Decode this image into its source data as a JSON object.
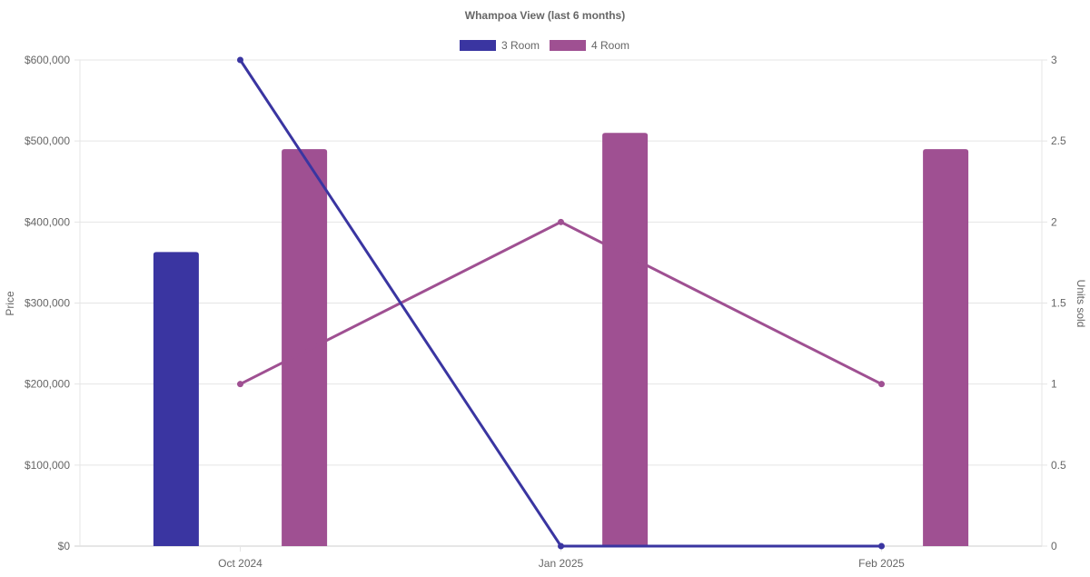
{
  "chart_data": {
    "type": "bar",
    "title": "Whampoa View (last 6 months)",
    "categories": [
      "Oct 2024",
      "Jan 2025",
      "Feb 2025"
    ],
    "ylabel": "Price",
    "y2label": "Units sold",
    "ylim": [
      0,
      600000
    ],
    "y2lim": [
      0,
      3
    ],
    "yticks": [
      "$0",
      "$100,000",
      "$200,000",
      "$300,000",
      "$400,000",
      "$500,000",
      "$600,000"
    ],
    "y2ticks": [
      "0",
      "0.5",
      "1",
      "1.5",
      "2",
      "2.5",
      "3"
    ],
    "grid": true,
    "legend_position": "top",
    "series": [
      {
        "name": "3 Room",
        "color": "#3a35a1",
        "price": [
          363000,
          null,
          null
        ],
        "units_sold": [
          3,
          0,
          0
        ]
      },
      {
        "name": "4 Room",
        "color": "#9f5092",
        "price": [
          490000,
          510000,
          490000
        ],
        "units_sold": [
          1,
          2,
          1
        ]
      }
    ]
  }
}
